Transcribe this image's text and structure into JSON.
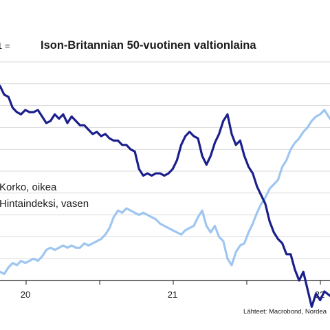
{
  "chart_data": {
    "type": "line",
    "title": "Ison-Britannian 50-vuotinen valtionlaina",
    "top_left_note": "1 =",
    "source": "Lähteet: Macrobond, Nordea",
    "x_ticks": [
      "20",
      "21",
      "22"
    ],
    "x_domain": [
      2019.85,
      2022.2
    ],
    "legend_placement": "left-middle",
    "grid": "horizontal",
    "series": [
      {
        "name": "Korko, oikea",
        "color": "#1a1f8c",
        "x": [
          2019.85,
          2019.88,
          2019.91,
          2019.94,
          2019.97,
          2020.0,
          2020.03,
          2020.06,
          2020.09,
          2020.12,
          2020.15,
          2020.18,
          2020.21,
          2020.24,
          2020.27,
          2020.3,
          2020.33,
          2020.36,
          2020.39,
          2020.42,
          2020.45,
          2020.48,
          2020.51,
          2020.54,
          2020.57,
          2020.6,
          2020.63,
          2020.66,
          2020.69,
          2020.72,
          2020.75,
          2020.78,
          2020.81,
          2020.84,
          2020.87,
          2020.9,
          2020.93,
          2020.96,
          2020.99,
          2021.02,
          2021.05,
          2021.08,
          2021.11,
          2021.14,
          2021.17,
          2021.2,
          2021.23,
          2021.26,
          2021.29,
          2021.32,
          2021.35,
          2021.38,
          2021.41,
          2021.44,
          2021.47,
          2021.5,
          2021.53,
          2021.56,
          2021.59,
          2021.62,
          2021.65,
          2021.68,
          2021.71,
          2021.74,
          2021.77,
          2021.8,
          2021.83,
          2021.86,
          2021.89,
          2021.92,
          2021.95,
          2021.98,
          2022.01,
          2022.04,
          2022.07,
          2022.1,
          2022.13,
          2022.16,
          2022.2
        ],
        "values": [
          0.89,
          0.85,
          0.84,
          0.79,
          0.77,
          0.76,
          0.78,
          0.77,
          0.77,
          0.78,
          0.75,
          0.72,
          0.73,
          0.76,
          0.74,
          0.76,
          0.72,
          0.75,
          0.73,
          0.71,
          0.71,
          0.69,
          0.67,
          0.68,
          0.66,
          0.67,
          0.65,
          0.64,
          0.64,
          0.62,
          0.62,
          0.6,
          0.59,
          0.51,
          0.48,
          0.49,
          0.48,
          0.49,
          0.49,
          0.48,
          0.49,
          0.51,
          0.55,
          0.62,
          0.66,
          0.68,
          0.66,
          0.65,
          0.57,
          0.53,
          0.57,
          0.63,
          0.67,
          0.73,
          0.76,
          0.67,
          0.62,
          0.64,
          0.57,
          0.52,
          0.49,
          0.43,
          0.39,
          0.35,
          0.27,
          0.22,
          0.19,
          0.17,
          0.12,
          0.12,
          0.05,
          0.0,
          0.04,
          -0.04,
          -0.12,
          -0.06,
          -0.09,
          -0.05,
          -0.07
        ]
      },
      {
        "name": "Hintaindeksi, vasen",
        "color": "#9ec6f0",
        "x": [
          2019.85,
          2019.88,
          2019.91,
          2019.94,
          2019.97,
          2020.0,
          2020.03,
          2020.06,
          2020.09,
          2020.12,
          2020.15,
          2020.18,
          2020.21,
          2020.24,
          2020.27,
          2020.3,
          2020.33,
          2020.36,
          2020.39,
          2020.42,
          2020.45,
          2020.48,
          2020.51,
          2020.54,
          2020.57,
          2020.6,
          2020.63,
          2020.66,
          2020.69,
          2020.72,
          2020.75,
          2020.78,
          2020.81,
          2020.84,
          2020.87,
          2020.9,
          2020.93,
          2020.96,
          2020.99,
          2021.02,
          2021.05,
          2021.08,
          2021.11,
          2021.14,
          2021.17,
          2021.2,
          2021.23,
          2021.26,
          2021.29,
          2021.32,
          2021.35,
          2021.38,
          2021.41,
          2021.44,
          2021.47,
          2021.5,
          2021.53,
          2021.56,
          2021.59,
          2021.62,
          2021.65,
          2021.68,
          2021.71,
          2021.74,
          2021.77,
          2021.8,
          2021.83,
          2021.86,
          2021.89,
          2021.92,
          2021.95,
          2021.98,
          2022.01,
          2022.04,
          2022.07,
          2022.1,
          2022.13,
          2022.16,
          2022.2
        ],
        "values": [
          0.04,
          0.03,
          0.06,
          0.08,
          0.07,
          0.09,
          0.08,
          0.09,
          0.1,
          0.09,
          0.11,
          0.14,
          0.15,
          0.14,
          0.15,
          0.16,
          0.15,
          0.16,
          0.15,
          0.15,
          0.17,
          0.16,
          0.17,
          0.18,
          0.19,
          0.21,
          0.24,
          0.29,
          0.32,
          0.31,
          0.33,
          0.32,
          0.31,
          0.3,
          0.31,
          0.3,
          0.29,
          0.28,
          0.26,
          0.25,
          0.24,
          0.23,
          0.22,
          0.21,
          0.23,
          0.24,
          0.25,
          0.29,
          0.32,
          0.25,
          0.22,
          0.25,
          0.2,
          0.18,
          0.1,
          0.07,
          0.13,
          0.16,
          0.17,
          0.22,
          0.26,
          0.31,
          0.35,
          0.38,
          0.42,
          0.44,
          0.46,
          0.52,
          0.55,
          0.6,
          0.63,
          0.65,
          0.68,
          0.7,
          0.73,
          0.75,
          0.76,
          0.78,
          0.74
        ]
      }
    ]
  }
}
